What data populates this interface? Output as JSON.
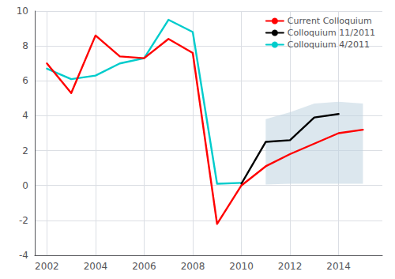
{
  "chart_data": {
    "type": "line",
    "series": [
      {
        "name": "Current Colloquium",
        "color": "#ff0000",
        "x": [
          2002,
          2003,
          2004,
          2005,
          2006,
          2007,
          2008,
          2009,
          2010,
          2011,
          2012,
          2013,
          2014,
          2015
        ],
        "values": [
          7.0,
          5.3,
          8.6,
          7.4,
          7.3,
          8.4,
          7.6,
          -2.2,
          0.0,
          1.1,
          1.8,
          2.4,
          3.0,
          3.2
        ]
      },
      {
        "name": "Colloquium 11/2011",
        "color": "#000000",
        "x": [
          2010,
          2011,
          2012,
          2013,
          2014
        ],
        "values": [
          0.1,
          2.5,
          2.6,
          3.9,
          4.1
        ]
      },
      {
        "name": "Colloquium 4/2011",
        "color": "#00cccc",
        "x": [
          2002,
          2003,
          2004,
          2005,
          2006,
          2007,
          2008,
          2009,
          2010
        ],
        "values": [
          6.7,
          6.1,
          6.3,
          7.0,
          7.3,
          9.5,
          8.8,
          0.1,
          0.15
        ]
      }
    ],
    "band": {
      "color": "#c0d4e0",
      "x": [
        2011.0,
        2012.0,
        2013.0,
        2014.0,
        2015.0
      ],
      "upper": [
        3.8,
        4.2,
        4.7,
        4.8,
        4.7
      ],
      "lower": [
        0.05,
        0.1,
        0.1,
        0.1,
        0.1
      ]
    },
    "xlim": [
      2001.5,
      2015.8
    ],
    "ylim": [
      -4,
      10
    ],
    "xticks": [
      2002,
      2004,
      2006,
      2008,
      2010,
      2012,
      2014
    ],
    "yticks": [
      -4,
      -2,
      0,
      2,
      4,
      6,
      8,
      10
    ],
    "grid": true,
    "legend": "upper right"
  }
}
